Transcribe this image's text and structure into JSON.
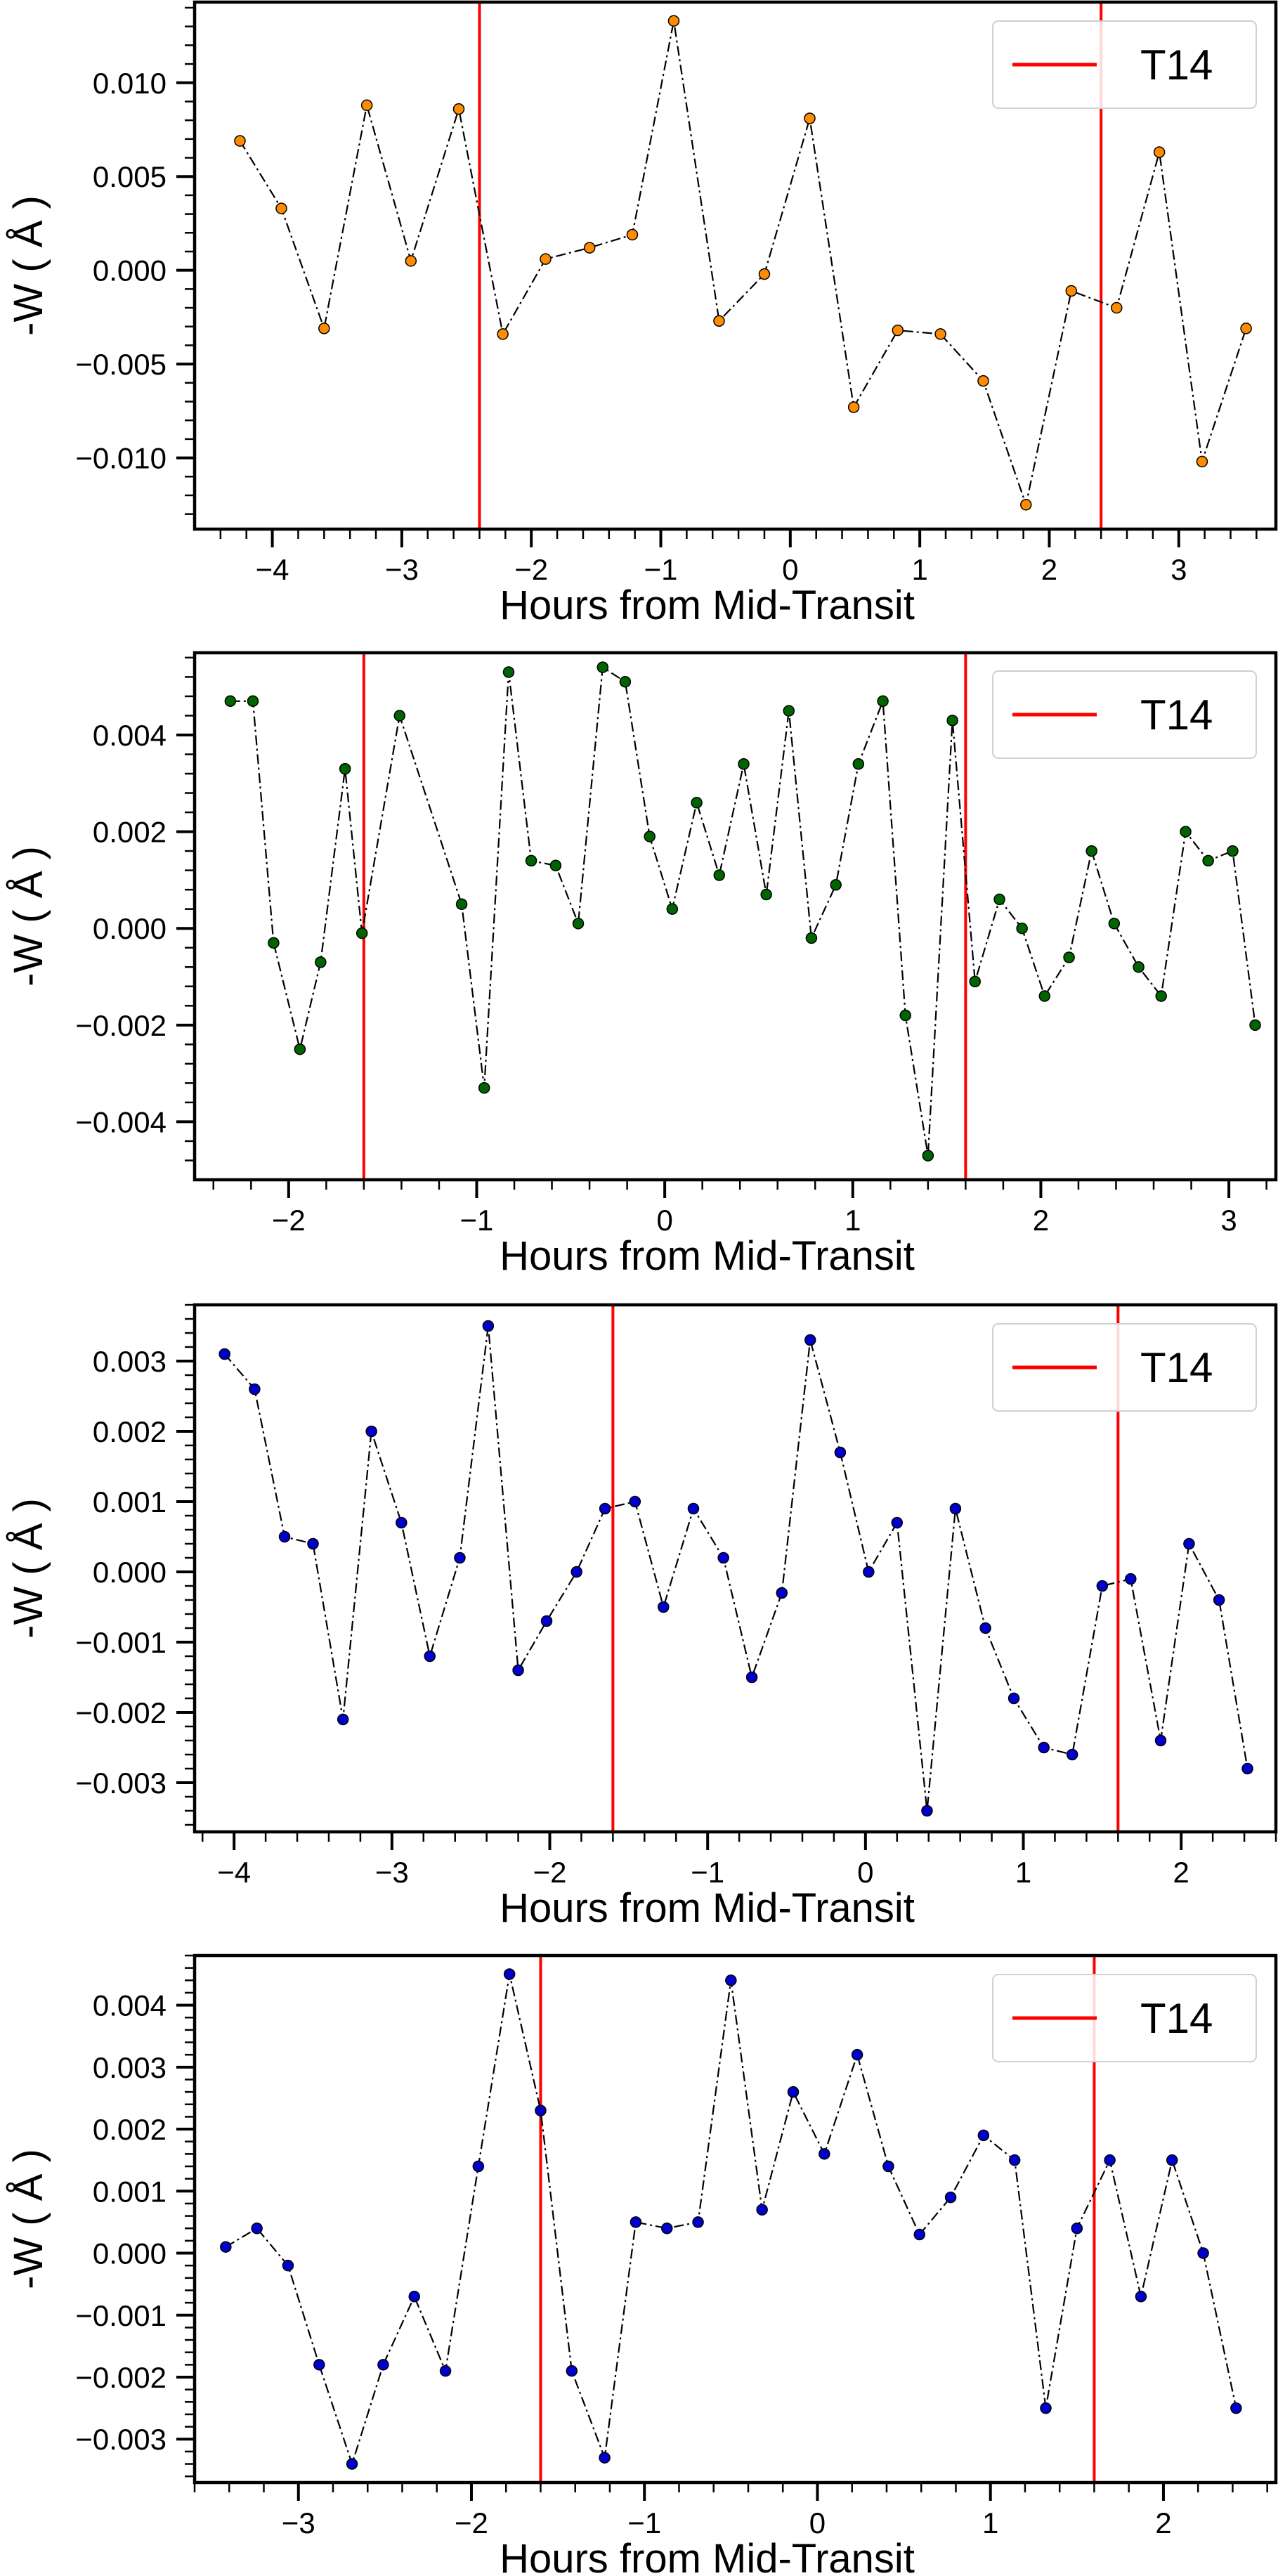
{
  "chart_data": [
    {
      "type": "line",
      "xlabel": "Hours from Mid-Transit",
      "ylabel": "-W ( Å )",
      "xlim": [
        -4.6,
        3.75
      ],
      "ylim": [
        -0.0138,
        0.0143
      ],
      "xticks": [
        -4,
        -3,
        -2,
        -1,
        0,
        1,
        2,
        3
      ],
      "xtick_labels": [
        "−4",
        "−3",
        "−2",
        "−1",
        "0",
        "1",
        "2",
        "3"
      ],
      "yticks": [
        -0.01,
        -0.005,
        0,
        0.005,
        0.01
      ],
      "ytick_labels": [
        "−0.010",
        "−0.005",
        "0.000",
        "0.005",
        "0.010"
      ],
      "marker_color": "#ff8c00",
      "vlines": [
        -2.4,
        2.4
      ],
      "vline_color": "#ff0000",
      "legend": [
        "T14"
      ],
      "legend_position": "upper right",
      "series": [
        {
          "x": [
            -4.25,
            -3.93,
            -3.6,
            -3.27,
            -2.93,
            -2.56,
            -2.22,
            -1.89,
            -1.55,
            -1.22,
            -0.9,
            -0.55,
            -0.2,
            0.15,
            0.49,
            0.83,
            1.16,
            1.49,
            1.82,
            2.17,
            2.52,
            2.85,
            3.18,
            3.52
          ],
          "y": [
            0.0069,
            0.0033,
            -0.0031,
            0.0088,
            0.0005,
            0.0086,
            -0.0034,
            0.0006,
            0.0012,
            0.0019,
            0.0133,
            -0.0027,
            -0.0002,
            0.0081,
            -0.0073,
            -0.0032,
            -0.0034,
            -0.0059,
            -0.0125,
            -0.0011,
            -0.002,
            0.0063,
            -0.0102,
            -0.0031
          ]
        }
      ]
    },
    {
      "type": "line",
      "xlabel": "Hours from Mid-Transit",
      "ylabel": "-W ( Å )",
      "xlim": [
        -2.5,
        3.25
      ],
      "ylim": [
        -0.0052,
        0.0057
      ],
      "xticks": [
        -2,
        -1,
        0,
        1,
        2,
        3
      ],
      "xtick_labels": [
        "−2",
        "−1",
        "0",
        "1",
        "2",
        "3"
      ],
      "yticks": [
        -0.004,
        -0.002,
        0,
        0.002,
        0.004
      ],
      "ytick_labels": [
        "−0.004",
        "−0.002",
        "0.000",
        "0.002",
        "0.004"
      ],
      "marker_color": "#006400",
      "vlines": [
        -1.6,
        1.6
      ],
      "vline_color": "#ff0000",
      "legend": [
        "T14"
      ],
      "legend_position": "upper right",
      "series": [
        {
          "x": [
            -2.31,
            -2.19,
            -2.08,
            -1.94,
            -1.83,
            -1.7,
            -1.61,
            -1.41,
            -1.08,
            -0.96,
            -0.83,
            -0.71,
            -0.58,
            -0.46,
            -0.33,
            -0.21,
            -0.08,
            0.04,
            0.17,
            0.29,
            0.42,
            0.54,
            0.66,
            0.78,
            0.91,
            1.03,
            1.16,
            1.28,
            1.4,
            1.53,
            1.65,
            1.78,
            1.9,
            2.02,
            2.15,
            2.27,
            2.39,
            2.52,
            2.64,
            2.77,
            2.89,
            3.02,
            3.14
          ],
          "y": [
            0.0047,
            0.0047,
            -0.0003,
            -0.0025,
            -0.0007,
            0.0033,
            -0.0001,
            0.0044,
            0.0005,
            -0.0033,
            0.0053,
            0.0014,
            0.0013,
            0.0001,
            0.0054,
            0.0051,
            0.0019,
            0.0004,
            0.0026,
            0.0011,
            0.0034,
            0.0007,
            0.0045,
            -0.0002,
            0.0009,
            0.0034,
            0.0047,
            -0.0018,
            -0.0047,
            0.0043,
            -0.0011,
            0.0006,
            0.0,
            -0.0014,
            -0.0006,
            0.0016,
            0.0001,
            -0.0008,
            -0.0014,
            0.002,
            0.0014,
            0.0016,
            -0.002
          ]
        }
      ]
    },
    {
      "type": "line",
      "xlabel": "Hours from Mid-Transit",
      "ylabel": "-W ( Å )",
      "xlim": [
        -4.25,
        2.6
      ],
      "ylim": [
        -0.0037,
        0.0038
      ],
      "xticks": [
        -4,
        -3,
        -2,
        -1,
        0,
        1,
        2
      ],
      "xtick_labels": [
        "−4",
        "−3",
        "−2",
        "−1",
        "0",
        "1",
        "2"
      ],
      "yticks": [
        -0.003,
        -0.002,
        -0.001,
        0,
        0.001,
        0.002,
        0.003
      ],
      "ytick_labels": [
        "−0.003",
        "−0.002",
        "−0.001",
        "0.000",
        "0.001",
        "0.002",
        "0.003"
      ],
      "marker_color": "#0000cd",
      "vlines": [
        -1.6,
        1.6
      ],
      "vline_color": "#ff0000",
      "legend": [
        "T14"
      ],
      "legend_position": "upper right",
      "series": [
        {
          "x": [
            -4.06,
            -3.87,
            -3.68,
            -3.5,
            -3.31,
            -3.13,
            -2.94,
            -2.76,
            -2.57,
            -2.39,
            -2.2,
            -2.02,
            -1.83,
            -1.65,
            -1.46,
            -1.28,
            -1.09,
            -0.9,
            -0.72,
            -0.53,
            -0.35,
            -0.16,
            0.02,
            0.2,
            0.39,
            0.57,
            0.76,
            0.94,
            1.13,
            1.31,
            1.5,
            1.68,
            1.87,
            2.05,
            2.24,
            2.42
          ],
          "y": [
            0.0031,
            0.0026,
            0.0005,
            0.0004,
            -0.0021,
            0.002,
            0.0007,
            -0.0012,
            0.0002,
            0.0035,
            -0.0014,
            -0.0007,
            0.0,
            0.0009,
            0.001,
            -0.0005,
            0.0009,
            0.0002,
            -0.0015,
            -0.0003,
            0.0033,
            0.0017,
            0.0,
            0.0007,
            -0.0034,
            0.0009,
            -0.0008,
            -0.0018,
            -0.0025,
            -0.0026,
            -0.0002,
            -0.0001,
            -0.0024,
            0.0004,
            -0.0004,
            -0.0028
          ]
        }
      ]
    },
    {
      "type": "line",
      "xlabel": "Hours from Mid-Transit",
      "ylabel": "-W ( Å )",
      "xlim": [
        -3.6,
        2.65
      ],
      "ylim": [
        -0.0037,
        0.0048
      ],
      "xticks": [
        -3,
        -2,
        -1,
        0,
        1,
        2
      ],
      "xtick_labels": [
        "−3",
        "−2",
        "−1",
        "0",
        "1",
        "2"
      ],
      "yticks": [
        -0.003,
        -0.002,
        -0.001,
        0,
        0.001,
        0.002,
        0.003,
        0.004
      ],
      "ytick_labels": [
        "−0.003",
        "−0.002",
        "−0.001",
        "0.000",
        "0.001",
        "0.002",
        "0.003",
        "0.004"
      ],
      "marker_color": "#0000cd",
      "vlines": [
        -1.6,
        1.6
      ],
      "vline_color": "#ff0000",
      "legend": [
        "T14"
      ],
      "legend_position": "upper right",
      "series": [
        {
          "x": [
            -3.42,
            -3.24,
            -3.06,
            -2.88,
            -2.69,
            -2.51,
            -2.33,
            -2.15,
            -1.96,
            -1.78,
            -1.6,
            -1.42,
            -1.23,
            -1.05,
            -0.87,
            -0.69,
            -0.5,
            -0.32,
            -0.14,
            0.04,
            0.23,
            0.41,
            0.59,
            0.77,
            0.96,
            1.14,
            1.32,
            1.5,
            1.69,
            1.87,
            2.05,
            2.23,
            2.42
          ],
          "y": [
            0.0001,
            0.0004,
            -0.0002,
            -0.0018,
            -0.0034,
            -0.0018,
            -0.0007,
            -0.0019,
            0.0014,
            0.0045,
            0.0023,
            -0.0019,
            -0.0033,
            0.0005,
            0.0004,
            0.0005,
            0.0044,
            0.0007,
            0.0026,
            0.0016,
            0.0032,
            0.0014,
            0.0003,
            0.0009,
            0.0019,
            0.0015,
            -0.0025,
            0.0004,
            0.0015,
            -0.0007,
            0.0015,
            0.0,
            -0.0025
          ]
        }
      ]
    }
  ]
}
